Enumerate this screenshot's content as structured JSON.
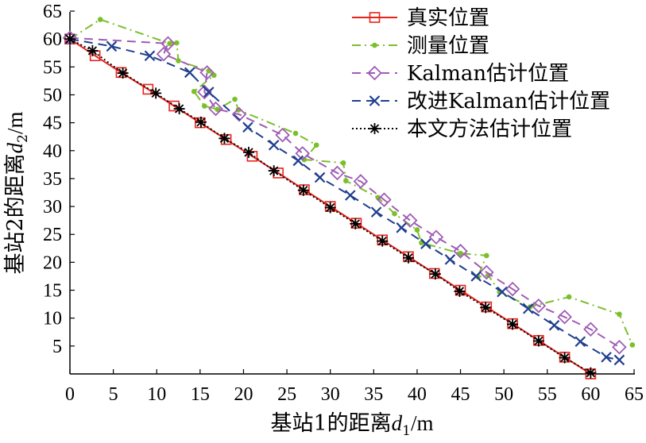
{
  "chart_data": {
    "type": "line",
    "xlabel": "基站1的距离",
    "xlabel_var": "d",
    "xlabel_sub": "1",
    "xlabel_unit": "/m",
    "ylabel": "基站2的距离",
    "ylabel_var": "d",
    "ylabel_sub": "2",
    "ylabel_unit": "/m",
    "xlim": [
      0,
      65
    ],
    "ylim": [
      0,
      65
    ],
    "xticks": [
      "0",
      "5",
      "10",
      "15",
      "20",
      "25",
      "30",
      "35",
      "40",
      "45",
      "50",
      "55",
      "60",
      "65"
    ],
    "yticks": [
      "5",
      "10",
      "15",
      "20",
      "25",
      "30",
      "35",
      "40",
      "45",
      "50",
      "55",
      "60",
      "65"
    ],
    "grid": false,
    "legend_position": "top-right",
    "series": [
      {
        "name": "真实位置",
        "color": "#e8231c",
        "line_style": "solid",
        "marker": "square",
        "x": [
          0,
          2.9,
          5.9,
          9,
          12,
          15,
          18,
          21,
          24,
          27,
          30,
          33,
          36,
          39,
          42,
          45,
          48,
          51,
          54,
          57,
          60
        ],
        "y": [
          60,
          57,
          54,
          51,
          48,
          45,
          42,
          39,
          36,
          33,
          30,
          27,
          24,
          21,
          18,
          15,
          12,
          9,
          6,
          3,
          0
        ]
      },
      {
        "name": "测量位置",
        "color": "#7bbf2a",
        "line_style": "dashdot",
        "marker": "dot",
        "x": [
          0,
          3.5,
          11.5,
          12.3,
          12.5,
          16,
          16.6,
          14.3,
          15.5,
          17,
          19,
          19.4,
          26,
          28.4,
          27,
          31.5,
          31.8,
          35.5,
          37.4,
          40,
          40.5,
          45,
          48,
          47,
          48.2,
          49.5,
          53,
          57.5,
          63.3,
          64.8
        ],
        "y": [
          60,
          63.5,
          59.2,
          59.3,
          56.1,
          54.3,
          53.5,
          50.6,
          48,
          47.4,
          49.2,
          47.3,
          43.1,
          41,
          38.4,
          37.8,
          34.6,
          31.6,
          28.7,
          25.8,
          23.5,
          21.6,
          21.2,
          17.4,
          17.7,
          14.7,
          12,
          13.8,
          10.7,
          5.2
        ]
      },
      {
        "name": "Kalman估计位置",
        "color": "#a05cb4",
        "line_style": "dashed",
        "marker": "diamond",
        "x": [
          0,
          11.3,
          10.8,
          15.8,
          15.5,
          16.8,
          19.5,
          24.5,
          26.8,
          30.8,
          33.5,
          36.2,
          39.2,
          42.2,
          45,
          48,
          51,
          54,
          57,
          60,
          63.3
        ],
        "y": [
          60.2,
          59.2,
          57.3,
          54,
          50.5,
          47.5,
          46.5,
          42.8,
          39.5,
          36,
          34.5,
          31.2,
          27.5,
          24.5,
          22,
          18.2,
          15.2,
          12.2,
          10.2,
          8,
          4.8
        ]
      },
      {
        "name": "改进Kalman估计位置",
        "color": "#1f3f8e",
        "line_style": "dashed",
        "marker": "x",
        "x": [
          0,
          4.8,
          9.2,
          13.8,
          16,
          20.5,
          23.5,
          26.3,
          28.8,
          32.3,
          35.3,
          38.2,
          41,
          43.8,
          46.8,
          49.8,
          52.8,
          55.8,
          58.8,
          61.8,
          63.3
        ],
        "y": [
          60,
          58.7,
          57,
          54,
          50.5,
          44.2,
          41,
          38.2,
          35.2,
          32,
          29,
          26.2,
          23.3,
          20.5,
          17.5,
          14.7,
          11.7,
          8.7,
          5.8,
          3,
          2.5
        ]
      },
      {
        "name": "本文方法估计位置",
        "color": "#000000",
        "line_style": "dotted",
        "marker": "star",
        "x": [
          0,
          2.6,
          6.1,
          9.9,
          12.6,
          15.1,
          17.8,
          20.6,
          23.5,
          26.9,
          30,
          32.9,
          36,
          39,
          42.1,
          44.9,
          47.9,
          51,
          54,
          57,
          60
        ],
        "y": [
          60,
          57.9,
          53.9,
          50.3,
          47.5,
          45.1,
          42.2,
          39.7,
          36.4,
          32.9,
          29.8,
          26.9,
          23.8,
          20.8,
          17.9,
          14.8,
          11.9,
          8.9,
          5.9,
          2.9,
          0.2
        ]
      }
    ]
  }
}
